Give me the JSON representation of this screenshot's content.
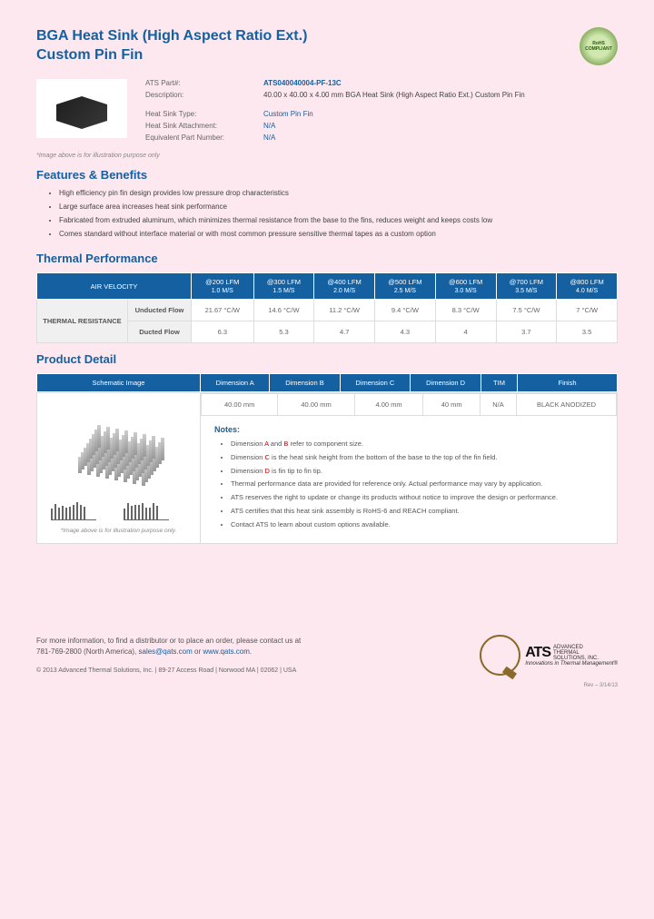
{
  "header": {
    "title_line1": "BGA Heat Sink (High Aspect Ratio Ext.)",
    "title_line2": "Custom Pin Fin",
    "rohs": "RoHS COMPLIANT"
  },
  "specs": {
    "part_label": "ATS Part#:",
    "part_value": "ATS040040004-PF-13C",
    "desc_label": "Description:",
    "desc_value": "40.00 x 40.00 x 4.00 mm BGA Heat Sink (High Aspect Ratio Ext.) Custom Pin Fin",
    "type_label": "Heat Sink Type:",
    "type_value": "Custom Pin Fin",
    "attach_label": "Heat Sink Attachment:",
    "attach_value": "N/A",
    "equiv_label": "Equivalent Part Number:",
    "equiv_value": "N/A"
  },
  "img_note": "*Image above is for illustration purpose only",
  "sections": {
    "features": "Features & Benefits",
    "thermal": "Thermal Performance",
    "detail": "Product Detail"
  },
  "features": [
    "High efficiency pin fin design provides low pressure drop characteristics",
    "Large surface area increases heat sink performance",
    "Fabricated from extruded aluminum, which minimizes thermal resistance from the base to the fins, reduces weight and keeps costs low",
    "Comes standard without interface material or with most common pressure sensitive thermal tapes as a custom option"
  ],
  "thermal": {
    "air_velocity": "AIR VELOCITY",
    "headers": [
      {
        "top": "@200 LFM",
        "bot": "1.0 M/S"
      },
      {
        "top": "@300 LFM",
        "bot": "1.5 M/S"
      },
      {
        "top": "@400 LFM",
        "bot": "2.0 M/S"
      },
      {
        "top": "@500 LFM",
        "bot": "2.5 M/S"
      },
      {
        "top": "@600 LFM",
        "bot": "3.0 M/S"
      },
      {
        "top": "@700 LFM",
        "bot": "3.5 M/S"
      },
      {
        "top": "@800 LFM",
        "bot": "4.0 M/S"
      }
    ],
    "resistance": "THERMAL RESISTANCE",
    "unducted": "Unducted Flow",
    "ducted": "Ducted Flow",
    "unducted_vals": [
      "21.67 °C/W",
      "14.6 °C/W",
      "11.2 °C/W",
      "9.4 °C/W",
      "8.3 °C/W",
      "7.5 °C/W",
      "7 °C/W"
    ],
    "ducted_vals": [
      "6.3",
      "5.3",
      "4.7",
      "4.3",
      "4",
      "3.7",
      "3.5"
    ]
  },
  "detail": {
    "schematic": "Schematic Image",
    "dim_headers": [
      "Dimension A",
      "Dimension B",
      "Dimension C",
      "Dimension D",
      "TIM",
      "Finish"
    ],
    "dim_values": [
      "40.00 mm",
      "40.00 mm",
      "4.00 mm",
      "40 mm",
      "N/A",
      "BLACK ANODIZED"
    ],
    "schem_note": "*Image above is for illustration purpose only.",
    "notes_title": "Notes:",
    "notes": [
      "Dimension <span class='red'>A</span> and <span class='red'>B</span> refer to component size.",
      "Dimension <span class='red'>C</span> is the heat sink height from the bottom of the base to the top of the fin field.",
      "Dimension <span class='red'>D</span> is fin tip to fin tip.",
      "Thermal performance data are provided for reference only. Actual performance may vary by application.",
      "ATS reserves the right to update or change its products without notice to improve the design or performance.",
      "ATS certifies that this heat sink assembly is RoHS-6 and REACH compliant.",
      "Contact ATS to learn about custom options available."
    ]
  },
  "footer": {
    "contact": "For more information, to find a distributor or to place an order, please contact us at<br>781-769-2800 (North America), <a>sales@qats.com</a> or <a>www.qats.com</a>.",
    "copyright": "© 2013 Advanced Thermal Solutions, Inc. | 89-27 Access Road | Norwood MA | 02062 | USA",
    "ats_name": "ADVANCED<br>THERMAL<br>SOLUTIONS, INC.",
    "ats_tag": "Innovations in Thermal Management®",
    "rev": "Rev – 3/14/13"
  }
}
